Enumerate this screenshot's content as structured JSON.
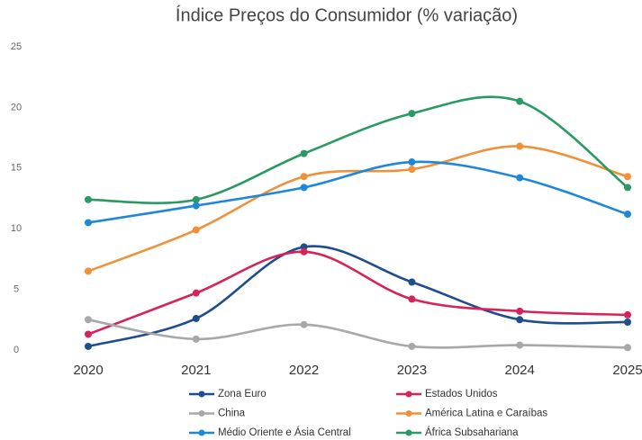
{
  "chart_data": {
    "type": "line",
    "title": "Índice Preços do Consumidor (% variação)",
    "categories": [
      "2020",
      "2021",
      "2022",
      "2023",
      "2024",
      "2025"
    ],
    "series": [
      {
        "name": "Zona Euro",
        "color": "#1f4e8c",
        "values": [
          0.3,
          2.6,
          8.5,
          5.6,
          2.5,
          2.3
        ]
      },
      {
        "name": "Estados Unidos",
        "color": "#d6245a",
        "values": [
          1.3,
          4.7,
          8.1,
          4.2,
          3.2,
          2.9
        ]
      },
      {
        "name": "China",
        "color": "#a8a8a8",
        "values": [
          2.5,
          0.9,
          2.1,
          0.3,
          0.4,
          0.2
        ]
      },
      {
        "name": "América Latina e Caraíbas",
        "color": "#f0913a",
        "values": [
          6.5,
          9.9,
          14.3,
          14.9,
          16.8,
          14.3
        ]
      },
      {
        "name": "Médio Oriente e Ásia Central",
        "color": "#1e88d8",
        "values": [
          10.5,
          11.9,
          13.4,
          15.5,
          14.2,
          11.2
        ]
      },
      {
        "name": "África Subsahariana",
        "color": "#2a9a62",
        "values": [
          12.4,
          12.4,
          16.2,
          19.5,
          20.5,
          13.4
        ]
      }
    ],
    "ylim": [
      0,
      25
    ],
    "yticks": [
      0,
      5,
      10,
      15,
      20,
      25
    ],
    "grid": false,
    "legend": "bottom"
  }
}
